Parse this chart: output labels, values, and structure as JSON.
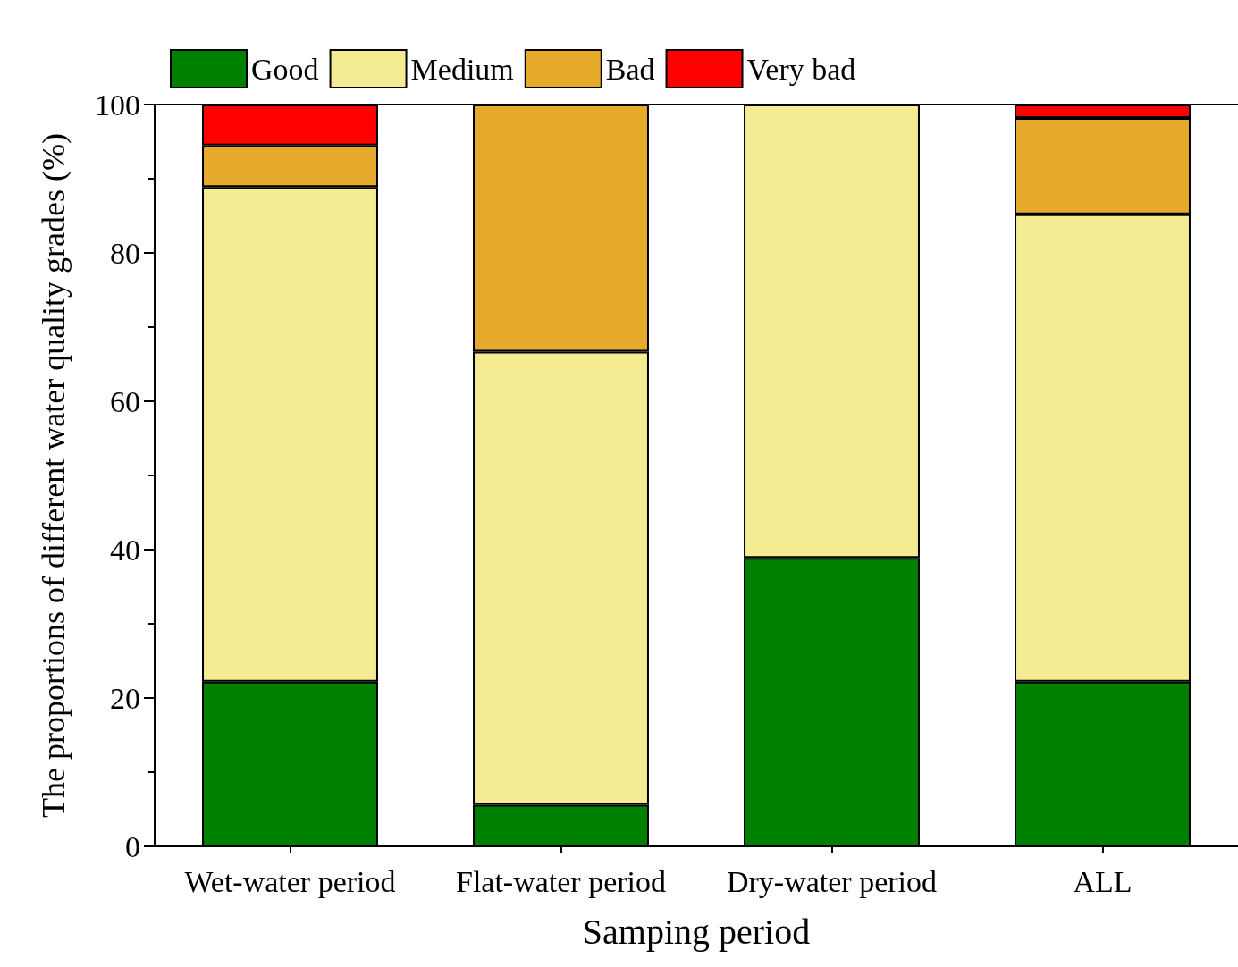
{
  "chart_data": {
    "type": "bar",
    "stacked": true,
    "xlabel": "Samping period",
    "ylabel": "The proportions of different water quality grades (%)",
    "categories": [
      "Wet-water period",
      "Flat-water period",
      "Dry-water period",
      "ALL"
    ],
    "series": [
      {
        "name": "Good",
        "color": "#008000",
        "values": [
          22.2,
          5.6,
          38.9,
          22.2
        ]
      },
      {
        "name": "Medium",
        "color": "#f3ec93",
        "values": [
          66.7,
          61.1,
          61.1,
          63.0
        ]
      },
      {
        "name": "Bad",
        "color": "#e5aa2b",
        "values": [
          5.6,
          33.3,
          null,
          13.0
        ]
      },
      {
        "name": "Very bad",
        "color": "#ff0000",
        "values": [
          5.5,
          null,
          null,
          1.8
        ]
      }
    ],
    "ylim": [
      0,
      100
    ],
    "yticks": [
      0,
      20,
      40,
      60,
      80,
      100
    ],
    "grid": false,
    "legend": "top left"
  }
}
